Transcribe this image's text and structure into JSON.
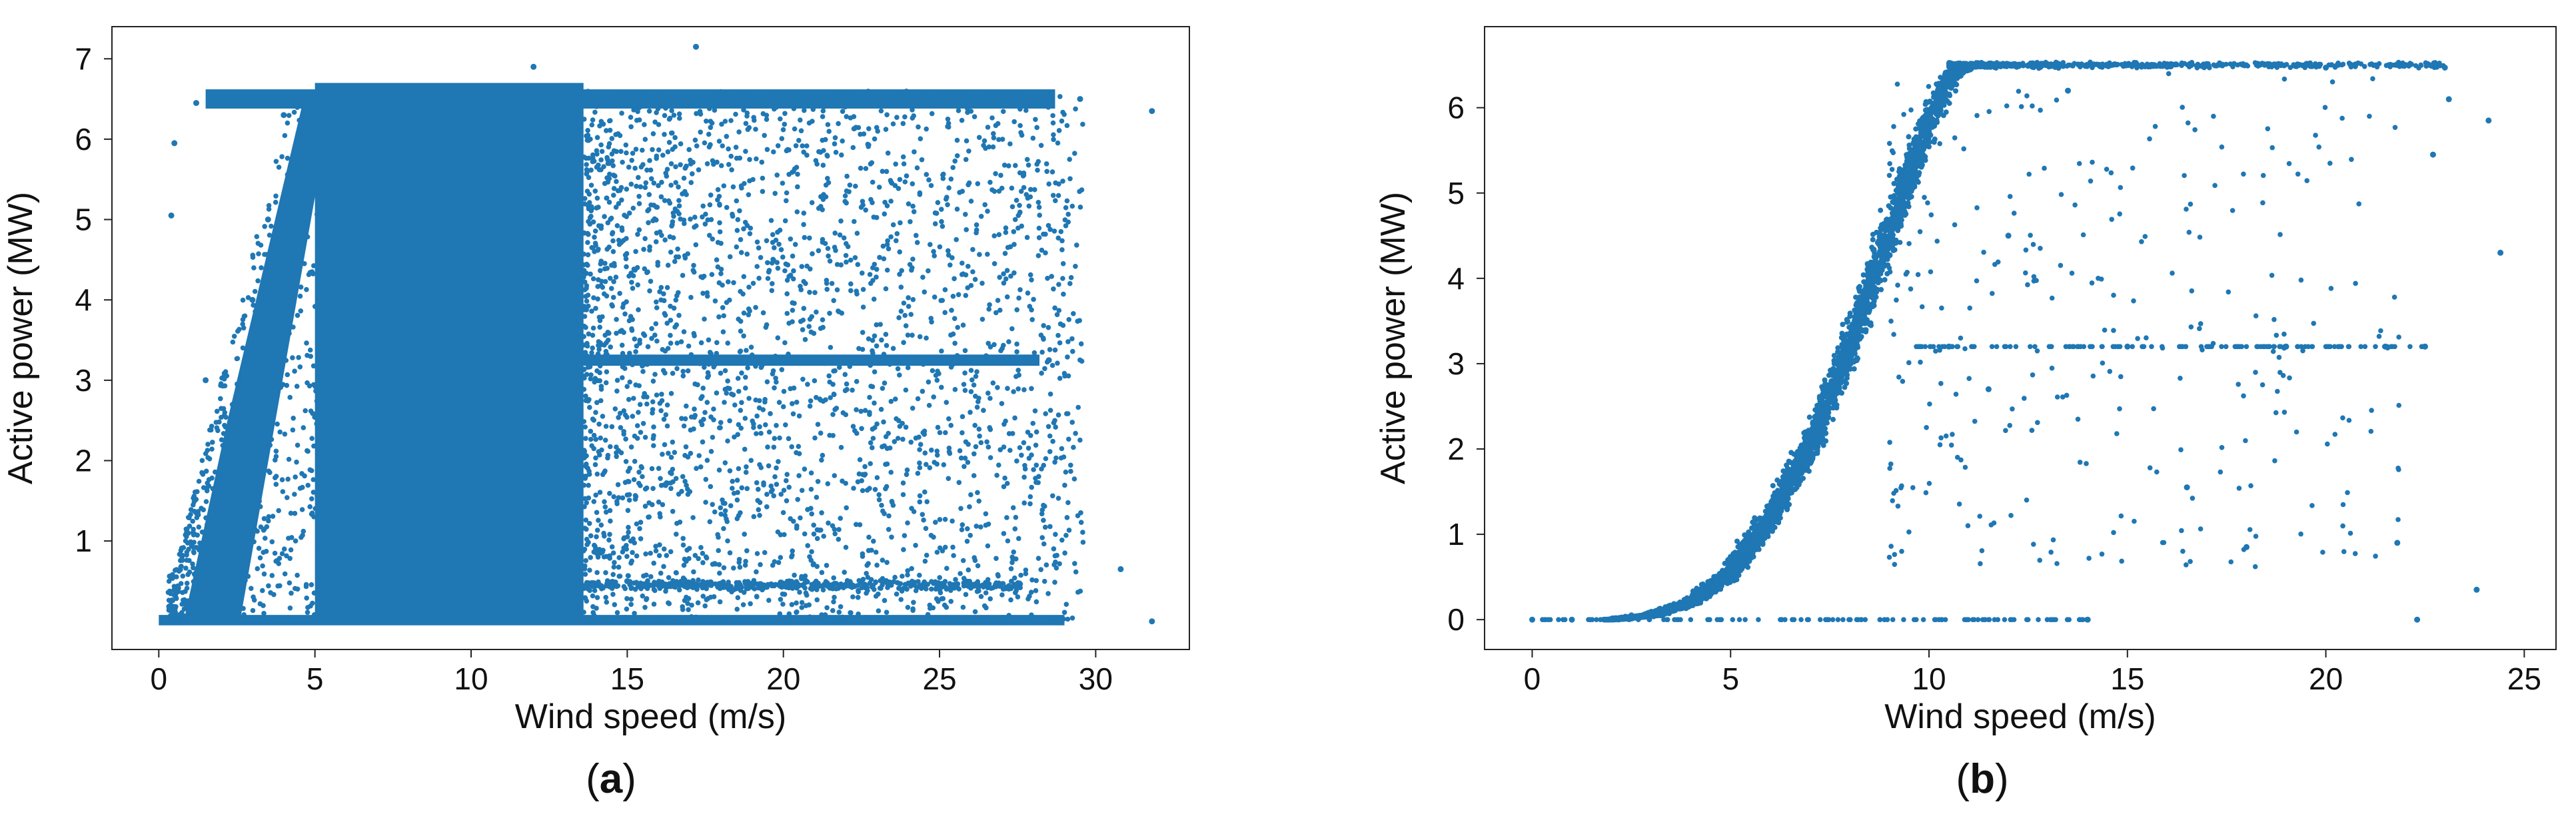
{
  "figure": {
    "panels": [
      {
        "id": "a",
        "caption": {
          "open": "(",
          "letter": "a",
          "close": ")"
        },
        "xlabel": "Wind speed (m/s)",
        "ylabel": "Active power (MW)",
        "xticks": [
          "0",
          "5",
          "10",
          "15",
          "20",
          "25",
          "30"
        ],
        "yticks": [
          "1",
          "2",
          "3",
          "4",
          "5",
          "6",
          "7"
        ]
      },
      {
        "id": "b",
        "caption": {
          "open": "(",
          "letter": "b",
          "close": ")"
        },
        "xlabel": "Wind speed (m/s)",
        "ylabel": "Active power (MW)",
        "xticks": [
          "0",
          "5",
          "10",
          "15",
          "20",
          "25"
        ],
        "yticks": [
          "0",
          "1",
          "2",
          "3",
          "4",
          "5",
          "6"
        ]
      }
    ]
  },
  "chart_data": [
    {
      "type": "scatter",
      "panel": "a",
      "title": "",
      "xlabel": "Wind speed (m/s)",
      "ylabel": "Active power (MW)",
      "xlim": [
        -1.5,
        33
      ],
      "ylim": [
        -0.35,
        7.4
      ],
      "xticks": [
        0,
        5,
        10,
        15,
        20,
        25,
        30
      ],
      "yticks": [
        1,
        2,
        3,
        4,
        5,
        6,
        7
      ],
      "grid": false,
      "legend": "none",
      "marker_color": "#1f77b4",
      "series": [
        {
          "name": "",
          "description_clusters": [
            {
              "kind": "dense-band",
              "x": [
                4.0,
                14.5
              ],
              "y": [
                0.0,
                6.7
              ]
            },
            {
              "kind": "rated-plateau",
              "x": [
                0.8,
                29.5
              ],
              "y": 6.5
            },
            {
              "kind": "curtailed-plateau",
              "x": [
                14.5,
                28.5
              ],
              "y": 3.25
            },
            {
              "kind": "low-plateau",
              "x": [
                12.5,
                27.5
              ],
              "y": 0.5
            },
            {
              "kind": "zero-line",
              "x": [
                0.0,
                32.0
              ],
              "y": 0.0
            }
          ],
          "points": [
            [
              0.1,
              0.0
            ],
            [
              0.5,
              5.95
            ],
            [
              0.4,
              5.05
            ],
            [
              1.2,
              6.45
            ],
            [
              1.5,
              3.0
            ],
            [
              2.0,
              0.5
            ],
            [
              2.5,
              2.5
            ],
            [
              3.0,
              4.0
            ],
            [
              3.5,
              5.0
            ],
            [
              4.0,
              6.3
            ],
            [
              5.0,
              6.5
            ],
            [
              10.0,
              6.6
            ],
            [
              12.0,
              6.9
            ],
            [
              17.2,
              7.15
            ],
            [
              15.0,
              6.5
            ],
            [
              20.0,
              6.5
            ],
            [
              25.0,
              6.5
            ],
            [
              29.5,
              6.5
            ],
            [
              31.8,
              6.35
            ],
            [
              15.0,
              3.25
            ],
            [
              20.0,
              3.25
            ],
            [
              25.0,
              3.25
            ],
            [
              28.5,
              3.25
            ],
            [
              15.0,
              0.5
            ],
            [
              20.0,
              0.45
            ],
            [
              25.0,
              0.4
            ],
            [
              30.8,
              0.65
            ],
            [
              31.8,
              0.0
            ],
            [
              20.0,
              0.0
            ],
            [
              27.0,
              0.0
            ]
          ]
        }
      ]
    },
    {
      "type": "scatter",
      "panel": "b",
      "title": "",
      "xlabel": "Wind speed (m/s)",
      "ylabel": "Active power (MW)",
      "xlim": [
        -1.2,
        25.8
      ],
      "ylim": [
        -0.35,
        6.95
      ],
      "xticks": [
        0,
        5,
        10,
        15,
        20,
        25
      ],
      "yticks": [
        0,
        1,
        2,
        3,
        4,
        5,
        6
      ],
      "grid": false,
      "legend": "none",
      "marker_color": "#1f77b4",
      "series": [
        {
          "name": "",
          "power_curve": [
            [
              2.0,
              0.0
            ],
            [
              3.0,
              0.05
            ],
            [
              4.0,
              0.2
            ],
            [
              5.0,
              0.55
            ],
            [
              6.0,
              1.2
            ],
            [
              7.0,
              2.05
            ],
            [
              8.0,
              3.2
            ],
            [
              9.0,
              4.55
            ],
            [
              10.0,
              5.85
            ],
            [
              10.6,
              6.4
            ],
            [
              11.0,
              6.5
            ],
            [
              23.0,
              6.5
            ]
          ],
          "points": [
            [
              0.0,
              0.0
            ],
            [
              1.0,
              0.0
            ],
            [
              2.5,
              0.05
            ],
            [
              4.5,
              0.3
            ],
            [
              6.5,
              1.5
            ],
            [
              8.0,
              3.2
            ],
            [
              9.5,
              5.2
            ],
            [
              10.5,
              6.4
            ],
            [
              12.0,
              6.5
            ],
            [
              16.0,
              6.48
            ],
            [
              20.0,
              6.47
            ],
            [
              23.0,
              6.47
            ],
            [
              23.8,
              0.35
            ],
            [
              24.1,
              5.85
            ],
            [
              24.4,
              4.3
            ],
            [
              22.3,
              0.0
            ],
            [
              14.0,
              0.0
            ],
            [
              10.5,
              3.2
            ],
            [
              15.0,
              3.2
            ],
            [
              19.0,
              3.2
            ],
            [
              21.5,
              3.2
            ],
            [
              22.5,
              3.2
            ],
            [
              18.0,
              0.85
            ],
            [
              21.8,
              0.9
            ],
            [
              16.5,
              1.55
            ],
            [
              22.7,
              5.45
            ],
            [
              23.1,
              6.1
            ],
            [
              13.5,
              6.2
            ],
            [
              12.0,
              4.5
            ],
            [
              11.5,
              2.7
            ]
          ]
        }
      ]
    }
  ]
}
